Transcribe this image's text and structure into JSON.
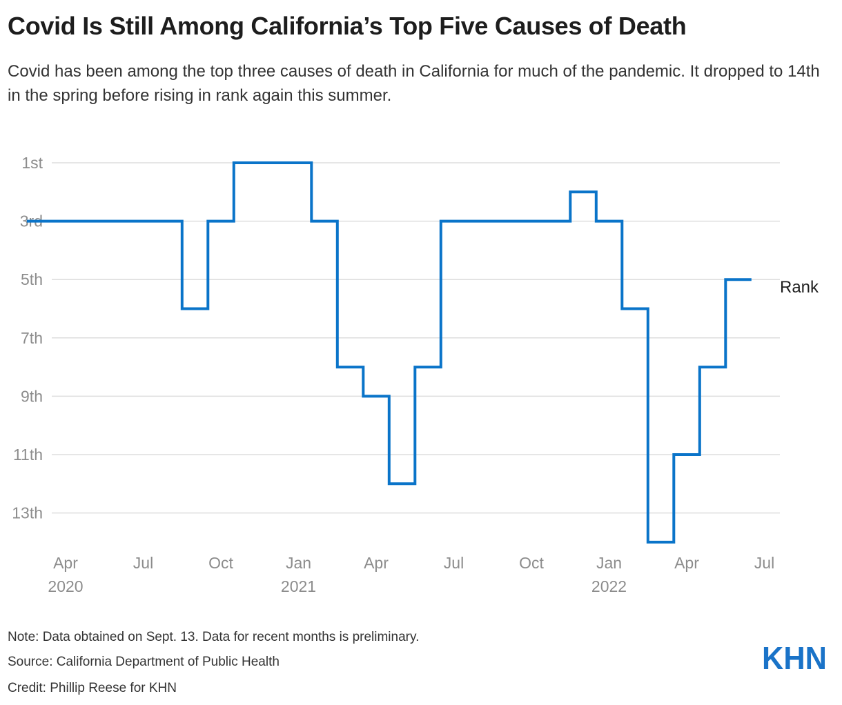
{
  "title": "Covid Is Still Among California’s Top Five Causes of Death",
  "subtitle": "Covid has been among the top three causes of death in California for much of the pandemic. It dropped to 14th in the spring before rising in rank again this summer.",
  "footer": {
    "note": "Note: Data obtained on Sept. 13. Data for recent months is preliminary.",
    "source": "Source: California Department of Public Health",
    "credit": "Credit: Phillip Reese for KHN"
  },
  "logo_text": "KHN",
  "colors": {
    "line": "#0a74c9",
    "grid": "#dedede",
    "axis_text": "#8c8c8c",
    "logo": "#1a73c8"
  },
  "chart_data": {
    "type": "line",
    "step": true,
    "title": "",
    "xlabel": "",
    "ylabel": "",
    "y_inverted": true,
    "ylim": [
      1,
      14
    ],
    "grid": true,
    "y_ticks": [
      {
        "value": 1,
        "label": "1st"
      },
      {
        "value": 3,
        "label": "3rd"
      },
      {
        "value": 5,
        "label": "5th"
      },
      {
        "value": 7,
        "label": "7th"
      },
      {
        "value": 9,
        "label": "9th"
      },
      {
        "value": 11,
        "label": "11th"
      },
      {
        "value": 13,
        "label": "13th"
      }
    ],
    "x_ticks": [
      {
        "date": "2020-04",
        "label": "Apr",
        "year": "2020"
      },
      {
        "date": "2020-07",
        "label": "Jul",
        "year": ""
      },
      {
        "date": "2020-10",
        "label": "Oct",
        "year": ""
      },
      {
        "date": "2021-01",
        "label": "Jan",
        "year": "2021"
      },
      {
        "date": "2021-04",
        "label": "Apr",
        "year": ""
      },
      {
        "date": "2021-07",
        "label": "Jul",
        "year": ""
      },
      {
        "date": "2021-10",
        "label": "Oct",
        "year": ""
      },
      {
        "date": "2022-01",
        "label": "Jan",
        "year": "2022"
      },
      {
        "date": "2022-04",
        "label": "Apr",
        "year": ""
      },
      {
        "date": "2022-07",
        "label": "Jul",
        "year": ""
      }
    ],
    "series": [
      {
        "name": "Rank",
        "color": "#0a74c9",
        "points": [
          {
            "date": "2020-03",
            "rank": 3
          },
          {
            "date": "2020-04",
            "rank": 3
          },
          {
            "date": "2020-05",
            "rank": 3
          },
          {
            "date": "2020-06",
            "rank": 3
          },
          {
            "date": "2020-07",
            "rank": 3
          },
          {
            "date": "2020-08",
            "rank": 3
          },
          {
            "date": "2020-09",
            "rank": 6
          },
          {
            "date": "2020-10",
            "rank": 3
          },
          {
            "date": "2020-11",
            "rank": 1
          },
          {
            "date": "2020-12",
            "rank": 1
          },
          {
            "date": "2021-01",
            "rank": 1
          },
          {
            "date": "2021-02",
            "rank": 3
          },
          {
            "date": "2021-03",
            "rank": 8
          },
          {
            "date": "2021-04",
            "rank": 9
          },
          {
            "date": "2021-05",
            "rank": 12
          },
          {
            "date": "2021-06",
            "rank": 8
          },
          {
            "date": "2021-07",
            "rank": 3
          },
          {
            "date": "2021-08",
            "rank": 3
          },
          {
            "date": "2021-09",
            "rank": 3
          },
          {
            "date": "2021-10",
            "rank": 3
          },
          {
            "date": "2021-11",
            "rank": 3
          },
          {
            "date": "2021-12",
            "rank": 2
          },
          {
            "date": "2022-01",
            "rank": 3
          },
          {
            "date": "2022-02",
            "rank": 6
          },
          {
            "date": "2022-03",
            "rank": 14
          },
          {
            "date": "2022-04",
            "rank": 11
          },
          {
            "date": "2022-05",
            "rank": 8
          },
          {
            "date": "2022-06",
            "rank": 5
          }
        ]
      }
    ]
  }
}
